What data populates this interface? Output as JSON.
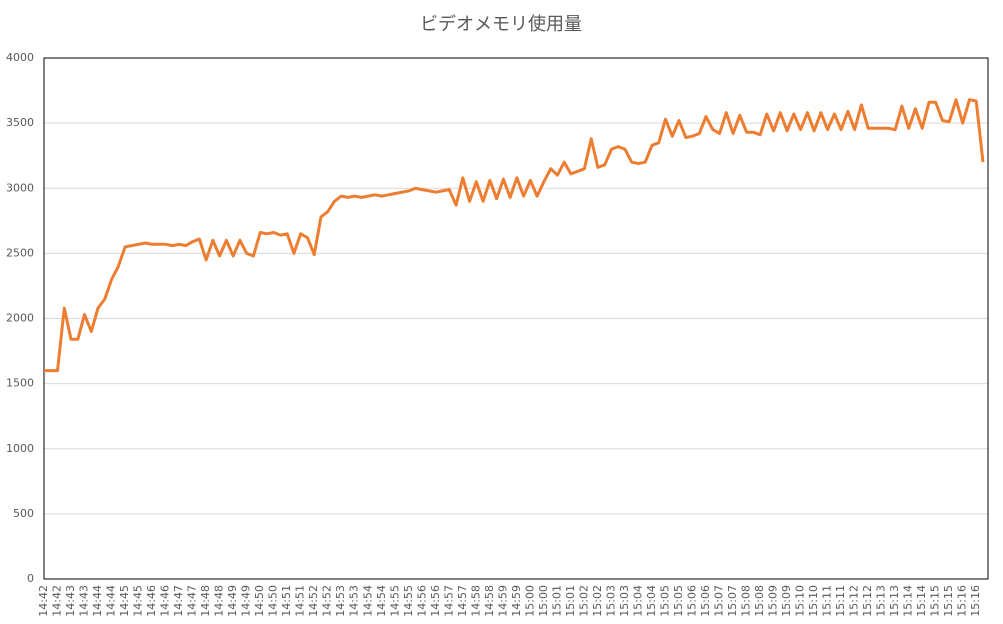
{
  "chart_data": {
    "type": "line",
    "title": "ビデオメモリ使用量",
    "categories": [
      "14:42",
      null,
      "14:42",
      null,
      "14:43",
      null,
      "14:43",
      null,
      "14:44",
      null,
      "14:44",
      null,
      "14:45",
      null,
      "14:45",
      null,
      "14:46",
      null,
      "14:46",
      null,
      "14:47",
      null,
      "14:47",
      null,
      "14:48",
      null,
      "14:48",
      null,
      "14:49",
      null,
      "14:49",
      null,
      "14:50",
      null,
      "14:50",
      null,
      "14:51",
      null,
      "14:51",
      null,
      "14:52",
      null,
      "14:52",
      null,
      "14:53",
      null,
      "14:53",
      null,
      "14:54",
      null,
      "14:54",
      null,
      "14:55",
      null,
      "14:55",
      null,
      "14:56",
      null,
      "14:56",
      null,
      "14:57",
      null,
      "14:57",
      null,
      "14:58",
      null,
      "14:58",
      null,
      "14:59",
      null,
      "14:59",
      null,
      "15:00",
      null,
      "15:00",
      null,
      "15:01",
      null,
      "15:01",
      null,
      "15:02",
      null,
      "15:02",
      null,
      "15:03",
      null,
      "15:03",
      null,
      "15:04",
      null,
      "15:04",
      null,
      "15:05",
      null,
      "15:05",
      null,
      "15:06",
      null,
      "15:06",
      null,
      "15:07",
      null,
      "15:07",
      null,
      "15:08",
      null,
      "15:08",
      null,
      "15:09",
      null,
      "15:09",
      null,
      "15:10",
      null,
      "15:10",
      null,
      "15:11",
      null,
      "15:11",
      null,
      "15:12",
      null,
      "15:12",
      null,
      "15:13",
      null,
      "15:13",
      null,
      "15:14",
      null,
      "15:14",
      null,
      "15:15",
      null,
      "15:15",
      null,
      "15:16",
      null,
      "15:16",
      null
    ],
    "values": [
      1600,
      1600,
      1600,
      2080,
      1840,
      1840,
      2030,
      1900,
      2080,
      2150,
      2300,
      2400,
      2550,
      2560,
      2570,
      2580,
      2570,
      2570,
      2570,
      2560,
      2570,
      2560,
      2590,
      2610,
      2450,
      2600,
      2480,
      2600,
      2480,
      2600,
      2500,
      2480,
      2660,
      2650,
      2660,
      2640,
      2650,
      2500,
      2650,
      2620,
      2490,
      2780,
      2820,
      2900,
      2940,
      2930,
      2940,
      2930,
      2940,
      2950,
      2940,
      2950,
      2960,
      2970,
      2980,
      3000,
      2990,
      2980,
      2970,
      2980,
      2990,
      2870,
      3080,
      2900,
      3050,
      2900,
      3060,
      2920,
      3070,
      2930,
      3080,
      2940,
      3060,
      2940,
      3050,
      3150,
      3100,
      3200,
      3110,
      3130,
      3150,
      3380,
      3160,
      3180,
      3300,
      3320,
      3300,
      3200,
      3190,
      3200,
      3330,
      3350,
      3530,
      3400,
      3520,
      3390,
      3400,
      3420,
      3550,
      3450,
      3420,
      3580,
      3420,
      3560,
      3430,
      3430,
      3410,
      3570,
      3440,
      3580,
      3440,
      3570,
      3450,
      3580,
      3440,
      3580,
      3450,
      3570,
      3450,
      3590,
      3450,
      3640,
      3460,
      3460,
      3460,
      3460,
      3450,
      3630,
      3460,
      3610,
      3460,
      3660,
      3660,
      3520,
      3510,
      3680,
      3500,
      3680,
      3670,
      3200
    ],
    "color": "#ed7d31",
    "ylim": [
      0,
      4000
    ],
    "yticks": [
      0,
      500,
      1000,
      1500,
      2000,
      2500,
      3000,
      3500,
      4000
    ],
    "grid": true
  }
}
